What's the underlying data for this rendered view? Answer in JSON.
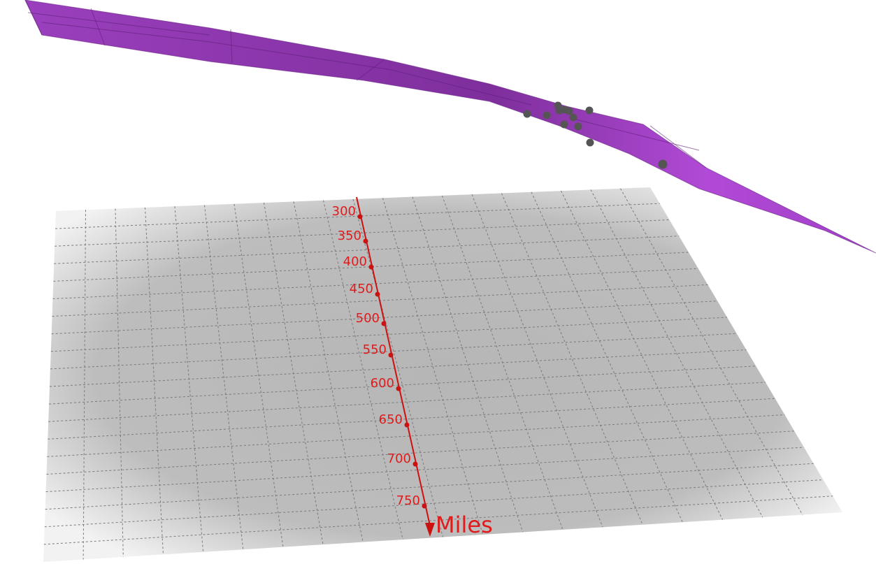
{
  "chart_data": {
    "type": "surface3d",
    "axes": {
      "y": {
        "label": "Miles",
        "ticks": [
          "300",
          "350",
          "400",
          "450",
          "500",
          "550",
          "600",
          "650",
          "700",
          "750"
        ],
        "tick_values": [
          300,
          350,
          400,
          450,
          500,
          550,
          600,
          650,
          700,
          750
        ],
        "color": "#e01b1b"
      }
    },
    "grid": true,
    "floor_grid_cells": 20,
    "surface_color": "#9b3fbf",
    "points_color": "#555555",
    "point_count": 12
  }
}
